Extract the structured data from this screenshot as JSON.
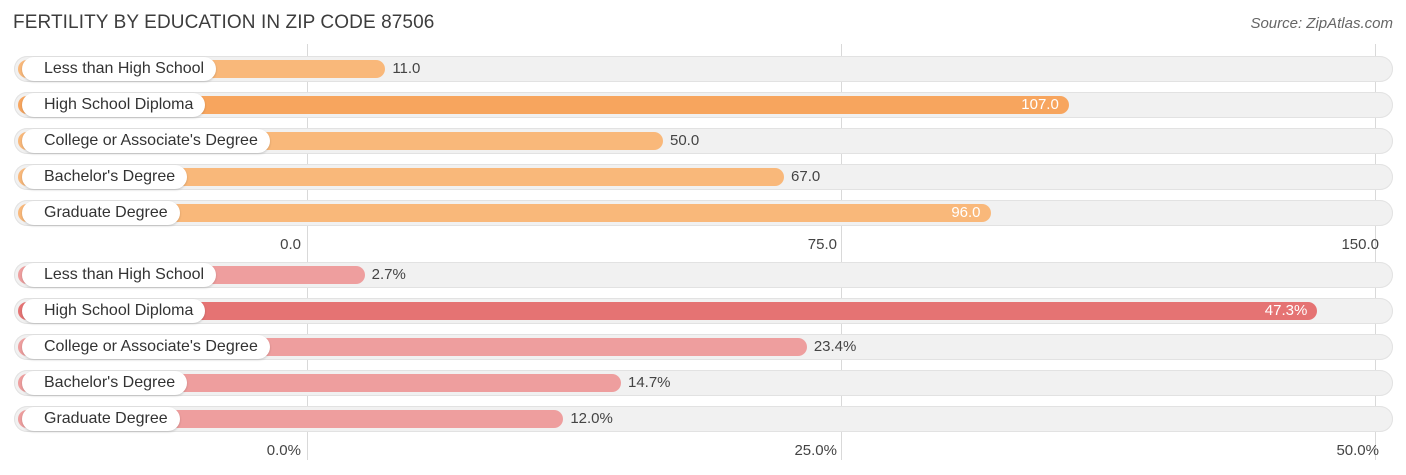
{
  "title": "FERTILITY BY EDUCATION IN ZIP CODE 87506",
  "source": "Source: ZipAtlas.com",
  "chart_data": [
    {
      "type": "bar",
      "orientation": "horizontal",
      "categories": [
        "Less than High School",
        "High School Diploma",
        "College or Associate's Degree",
        "Bachelor's Degree",
        "Graduate Degree"
      ],
      "values": [
        11.0,
        107.0,
        50.0,
        67.0,
        96.0
      ],
      "value_labels": [
        "11.0",
        "107.0",
        "50.0",
        "67.0",
        "96.0"
      ],
      "xlim": [
        0,
        150
      ],
      "ticks": [
        "0.0",
        "75.0",
        "150.0"
      ],
      "grid": true,
      "colors": {
        "bar": "#f9b87a",
        "highlight": "#f7a55e"
      }
    },
    {
      "type": "bar",
      "orientation": "horizontal",
      "categories": [
        "Less than High School",
        "High School Diploma",
        "College or Associate's Degree",
        "Bachelor's Degree",
        "Graduate Degree"
      ],
      "values": [
        2.7,
        47.3,
        23.4,
        14.7,
        12.0
      ],
      "value_labels": [
        "2.7%",
        "47.3%",
        "23.4%",
        "14.7%",
        "12.0%"
      ],
      "xlim": [
        0,
        50
      ],
      "ticks": [
        "0.0%",
        "25.0%",
        "50.0%"
      ],
      "grid": true,
      "colors": {
        "bar": "#ee9e9e",
        "highlight": "#e57373"
      }
    }
  ]
}
